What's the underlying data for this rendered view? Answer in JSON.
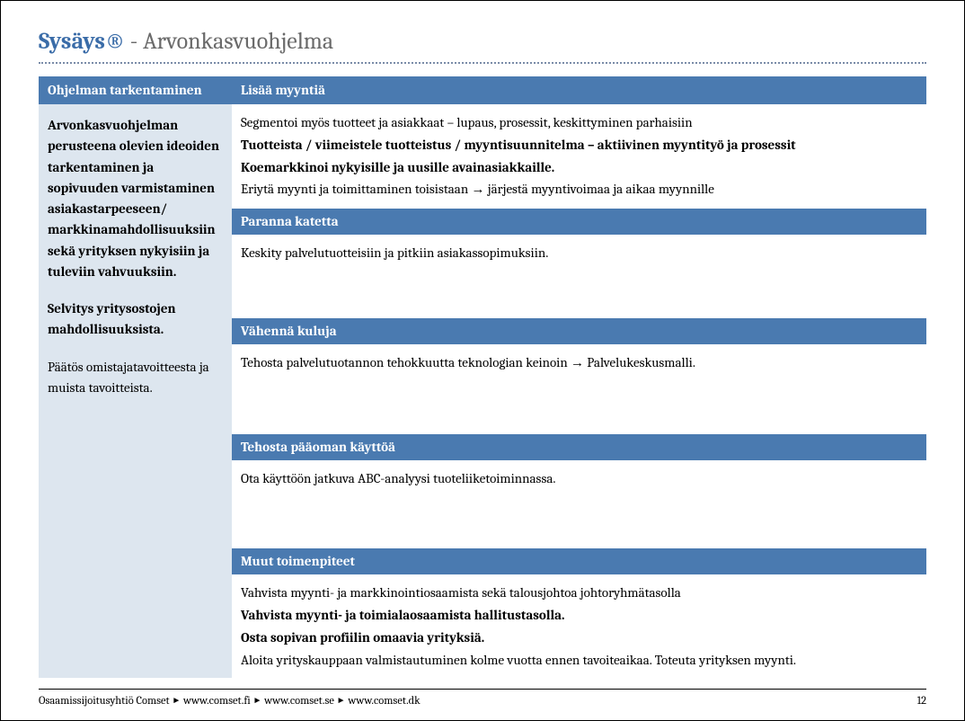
{
  "title": {
    "brand": "Sysäys®",
    "separator": " - ",
    "subtitle": "Arvonkasvuohjelma"
  },
  "colors": {
    "header_bg": "#4a7ab0",
    "header_fg": "#ffffff",
    "left_bg": "#dde6ef",
    "brand_fg": "#3a6ca8",
    "dotted": "#7a8ca8"
  },
  "left": {
    "header": "Ohjelman tarkentaminen",
    "p1": "Arvonkasvuohjelman perusteena olevien ideoiden tarkentaminen ja  sopivuuden varmistaminen asiakastarpeeseen/ markkinamahdollisuuksiin sekä yrityksen nykyisiin ja tuleviin vahvuuksiin.",
    "p2": "Selvitys yritysostojen mahdollisuuksista.",
    "p3": "Päätös omistajatavoitteesta ja muista tavoitteista."
  },
  "sections": [
    {
      "header": "Lisää myyntiä",
      "lines": [
        {
          "text": "Segmentoi myös tuotteet ja asiakkaat – lupaus, prosessit, keskittyminen parhaisiin",
          "bold": false
        },
        {
          "text": "Tuotteista / viimeistele tuotteistus / myyntisuunnitelma – aktiivinen myyntityö ja prosessit",
          "bold": true
        },
        {
          "text": "Koemarkkinoi nykyisille ja uusille avainasiakkaille.",
          "bold": true
        },
        {
          "text_pre": "Eriytä myynti ja toimittaminen toisistaan ",
          "arrow": "→",
          "text_post": " järjestä myyntivoimaa ja aikaa myynnille",
          "bold": false
        }
      ],
      "spacer_after": ""
    },
    {
      "header": "Paranna katetta",
      "lines": [
        {
          "text": "Keskity palvelutuotteisiin ja pitkiin asiakassopimuksiin.",
          "bold": false
        }
      ],
      "spacer_after": "spacer-md"
    },
    {
      "header": "Vähennä kuluja",
      "lines": [
        {
          "text_pre": "Tehosta palvelutuotannon tehokkuutta teknologian keinoin ",
          "arrow": "→",
          "text_post": " Palvelukeskusmalli.",
          "bold": false
        }
      ],
      "spacer_after": "spacer-lg"
    },
    {
      "header": "Tehosta pääoman käyttöä",
      "lines": [
        {
          "text": "Ota käyttöön jatkuva ABC-analyysi tuoteliiketoiminnassa.",
          "bold": false
        }
      ],
      "spacer_after": "spacer-lg"
    },
    {
      "header": "Muut toimenpiteet",
      "lines": [
        {
          "text": "Vahvista myynti- ja markkinointiosaamista sekä talousjohtoa johtoryhmätasolla",
          "bold": false
        },
        {
          "text": "Vahvista myynti- ja toimialaosaamista hallitustasolla.",
          "bold": true
        },
        {
          "text": "Osta sopivan profiilin omaavia yrityksiä.",
          "bold": true
        },
        {
          "text": "Aloita yrityskauppaan valmistautuminen kolme vuotta ennen tavoiteaikaa. Toteuta yrityksen myynti.",
          "bold": false
        }
      ],
      "spacer_after": ""
    }
  ],
  "footer": {
    "org": "Osaamissijoitusyhtiö Comset",
    "links": [
      "www.comset.fi",
      "www.comset.se",
      "www.comset.dk"
    ],
    "sep": "►",
    "page": "12"
  }
}
